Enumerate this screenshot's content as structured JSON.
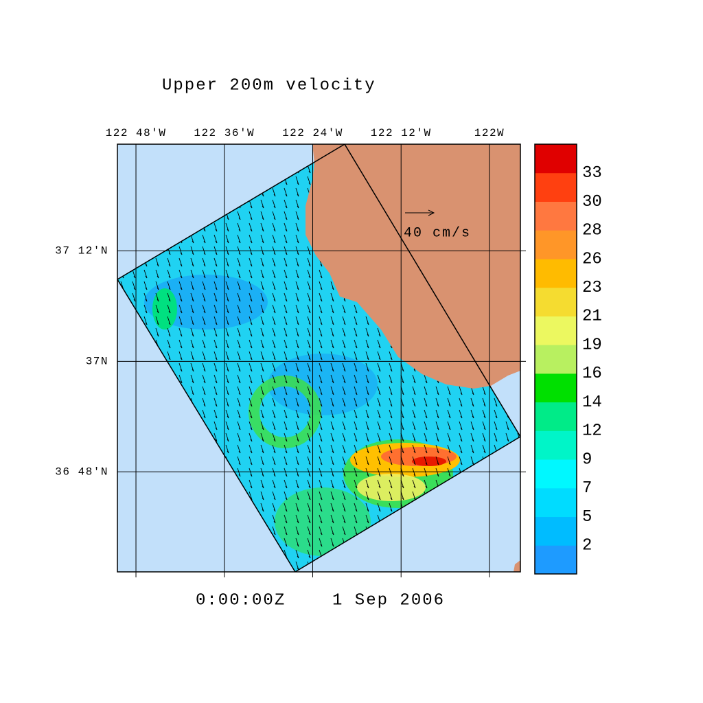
{
  "chart_data": {
    "type": "vector-map",
    "title": "Upper 200m velocity",
    "time": "0:00:00Z",
    "date": "1 Sep 2006",
    "scale_label": "40 cm/s",
    "xlim": [
      -122.842,
      -121.93
    ],
    "ylim": [
      36.619,
      37.393
    ],
    "xticks": [
      {
        "value": -122.8,
        "label": "122 48'W"
      },
      {
        "value": -122.6,
        "label": "122 36'W"
      },
      {
        "value": -122.4,
        "label": "122 24'W"
      },
      {
        "value": -122.2,
        "label": "122 12'W"
      },
      {
        "value": -122.0,
        "label": "122W"
      }
    ],
    "yticks": [
      {
        "value": 36.8,
        "label": "36 48'N"
      },
      {
        "value": 37.0,
        "label": "37N"
      },
      {
        "value": 37.2,
        "label": "37 12'N"
      }
    ],
    "grid": true,
    "ocean_color": "#c2e0fa",
    "land_color": "#d99270",
    "colorbar": {
      "levels": [
        2,
        5,
        7,
        9,
        12,
        14,
        16,
        19,
        21,
        23,
        26,
        28,
        30,
        33
      ],
      "colors": [
        "#1e9bff",
        "#00bcff",
        "#00dcff",
        "#00f8ff",
        "#00f5c8",
        "#00eb88",
        "#00e000",
        "#b8f060",
        "#ecf860",
        "#f5dc30",
        "#ffbb00",
        "#ff9628",
        "#ff7840",
        "#ff4010",
        "#e00000"
      ]
    }
  }
}
